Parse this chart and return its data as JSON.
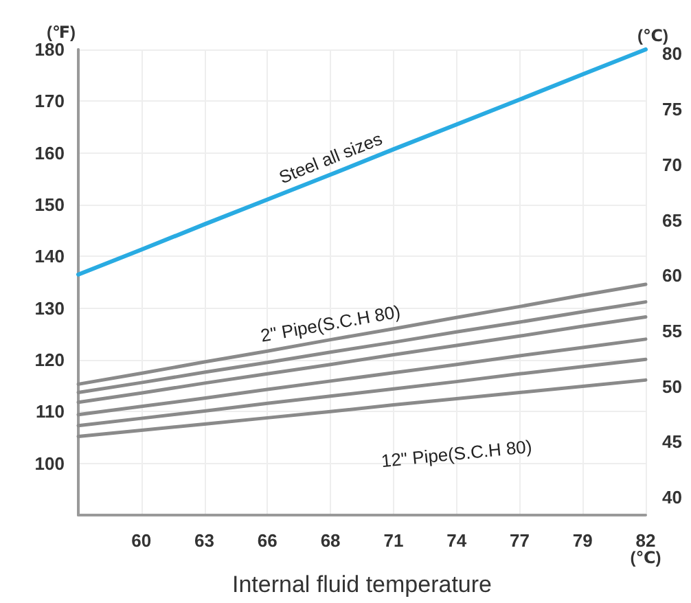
{
  "chart_data": {
    "type": "line",
    "xlabel": "Internal fluid temperature",
    "ylabel": "(℉)",
    "y2label": "(℃)",
    "annotations": [
      "(℃)"
    ],
    "categories": [
      null,
      "60",
      "63",
      "66",
      "68",
      "71",
      "74",
      "77",
      "79",
      "82"
    ],
    "series": [
      {
        "name": "Steel all sizes",
        "color": "#29abe2",
        "values": [
          136.5,
          141.3,
          146.2,
          151.0,
          155.8,
          160.7,
          165.5,
          170.3,
          175.2,
          180
        ]
      },
      {
        "name": "2\" Pipe(S.C.H 80)",
        "color": "#8a8a8a",
        "values": [
          115.3,
          117.4,
          119.6,
          121.7,
          123.9,
          126.0,
          128.2,
          130.3,
          132.5,
          134.6
        ]
      },
      {
        "color": "#8a8a8a",
        "values": [
          113.7,
          115.6,
          117.6,
          119.5,
          121.5,
          123.4,
          125.4,
          127.3,
          129.3,
          131.2
        ]
      },
      {
        "color": "#8a8a8a",
        "values": [
          111.8,
          113.6,
          115.5,
          117.3,
          119.1,
          121.0,
          122.8,
          124.6,
          126.5,
          128.3
        ]
      },
      {
        "color": "#8a8a8a",
        "values": [
          109.4,
          111.0,
          112.6,
          114.3,
          115.9,
          117.5,
          119.1,
          120.8,
          122.4,
          124.0
        ]
      },
      {
        "color": "#8a8a8a",
        "values": [
          107.3,
          108.7,
          110.1,
          111.6,
          113.0,
          114.4,
          115.8,
          117.3,
          118.7,
          120.1
        ]
      },
      {
        "name": "12\" Pipe(S.C.H 80)",
        "color": "#8a8a8a",
        "values": [
          105.2,
          106.4,
          107.6,
          108.8,
          110.0,
          111.3,
          112.5,
          113.7,
          114.9,
          116.1
        ]
      }
    ],
    "ylim": [
      90,
      180
    ],
    "yticks": [
      100,
      110,
      120,
      130,
      140,
      150,
      160,
      170,
      180
    ],
    "y2lim": [
      38.4,
      80.4
    ],
    "y2ticks": [
      40,
      45,
      50,
      55,
      60,
      65,
      70,
      75,
      80
    ],
    "grid": true,
    "legend": false,
    "marker": "none",
    "line_style": "solid"
  }
}
